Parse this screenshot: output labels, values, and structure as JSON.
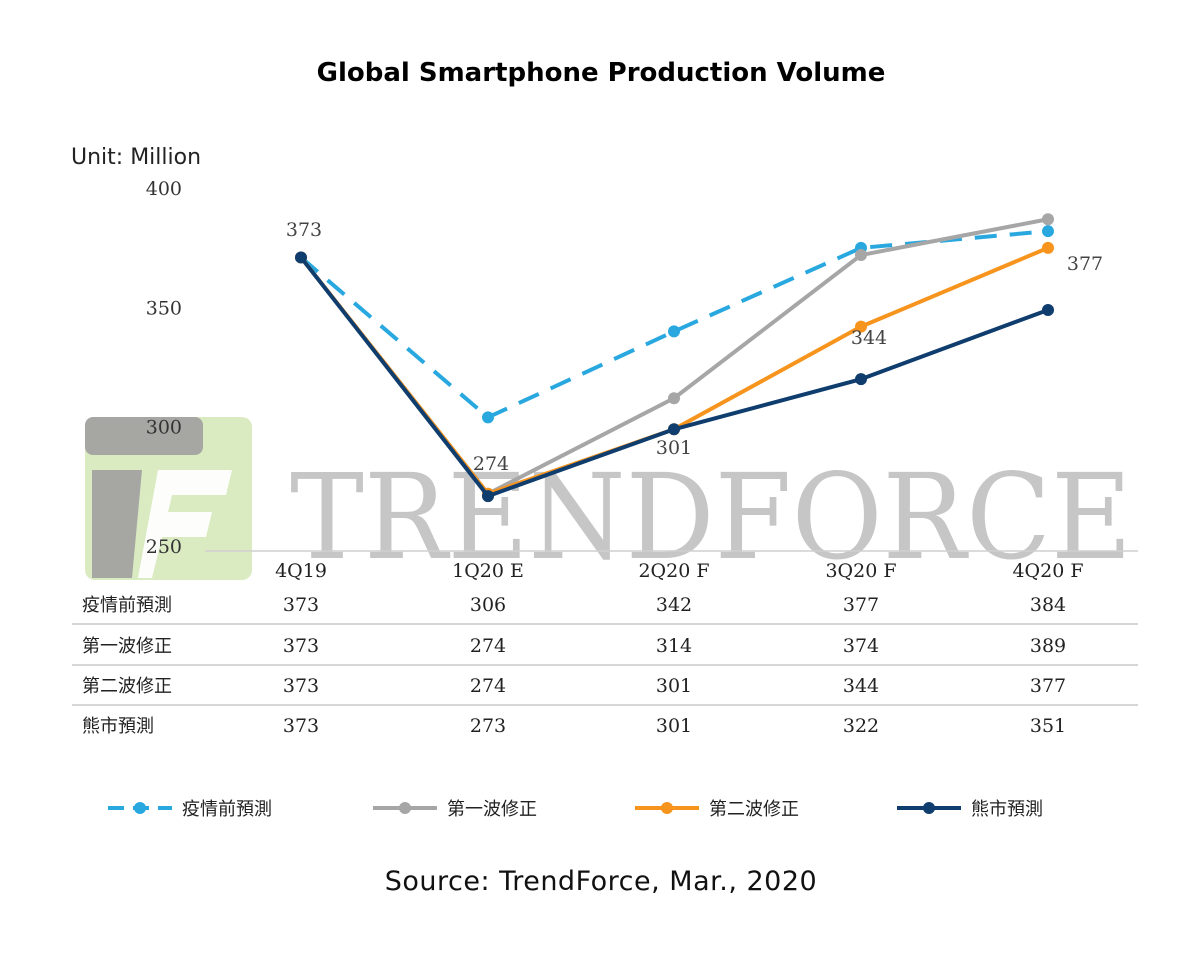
{
  "title": "Global Smartphone Production Volume",
  "unit_label": "Unit: Million",
  "source": "Source: TrendForce, Mar., 2020",
  "watermark": {
    "text": "TRENDFORCE"
  },
  "colors": {
    "pre_epidemic": "#29a8e0",
    "first_wave": "#a6a6a6",
    "second_wave": "#f7941d",
    "bear_market": "#0f3d6e",
    "watermark_gray": "#aaaaaa",
    "watermark_green": "#cfe3b0"
  },
  "chart_data": {
    "type": "line",
    "title": "Global Smartphone Production Volume",
    "ylabel": "Unit: Million",
    "xlabel": "",
    "ylim": [
      250,
      400
    ],
    "yticks": [
      400,
      350,
      300,
      250
    ],
    "categories": [
      "4Q19",
      "1Q20 E",
      "2Q20 F",
      "3Q20 F",
      "4Q20 F"
    ],
    "series": [
      {
        "name": "疫情前預測",
        "style": "dashed",
        "color": "#29a8e0",
        "values": [
          373,
          306,
          342,
          377,
          384
        ]
      },
      {
        "name": "第一波修正",
        "style": "solid",
        "color": "#a6a6a6",
        "values": [
          373,
          274,
          314,
          374,
          389
        ]
      },
      {
        "name": "第二波修正",
        "style": "solid",
        "color": "#f7941d",
        "values": [
          373,
          274,
          301,
          344,
          377
        ]
      },
      {
        "name": "熊市預測",
        "style": "solid",
        "color": "#0f3d6e",
        "values": [
          373,
          273,
          301,
          322,
          351
        ]
      }
    ],
    "data_labels": [
      {
        "text": "373"
      },
      {
        "text": "274"
      },
      {
        "text": "301"
      },
      {
        "text": "344"
      },
      {
        "text": "377"
      }
    ],
    "legend_position": "bottom"
  }
}
